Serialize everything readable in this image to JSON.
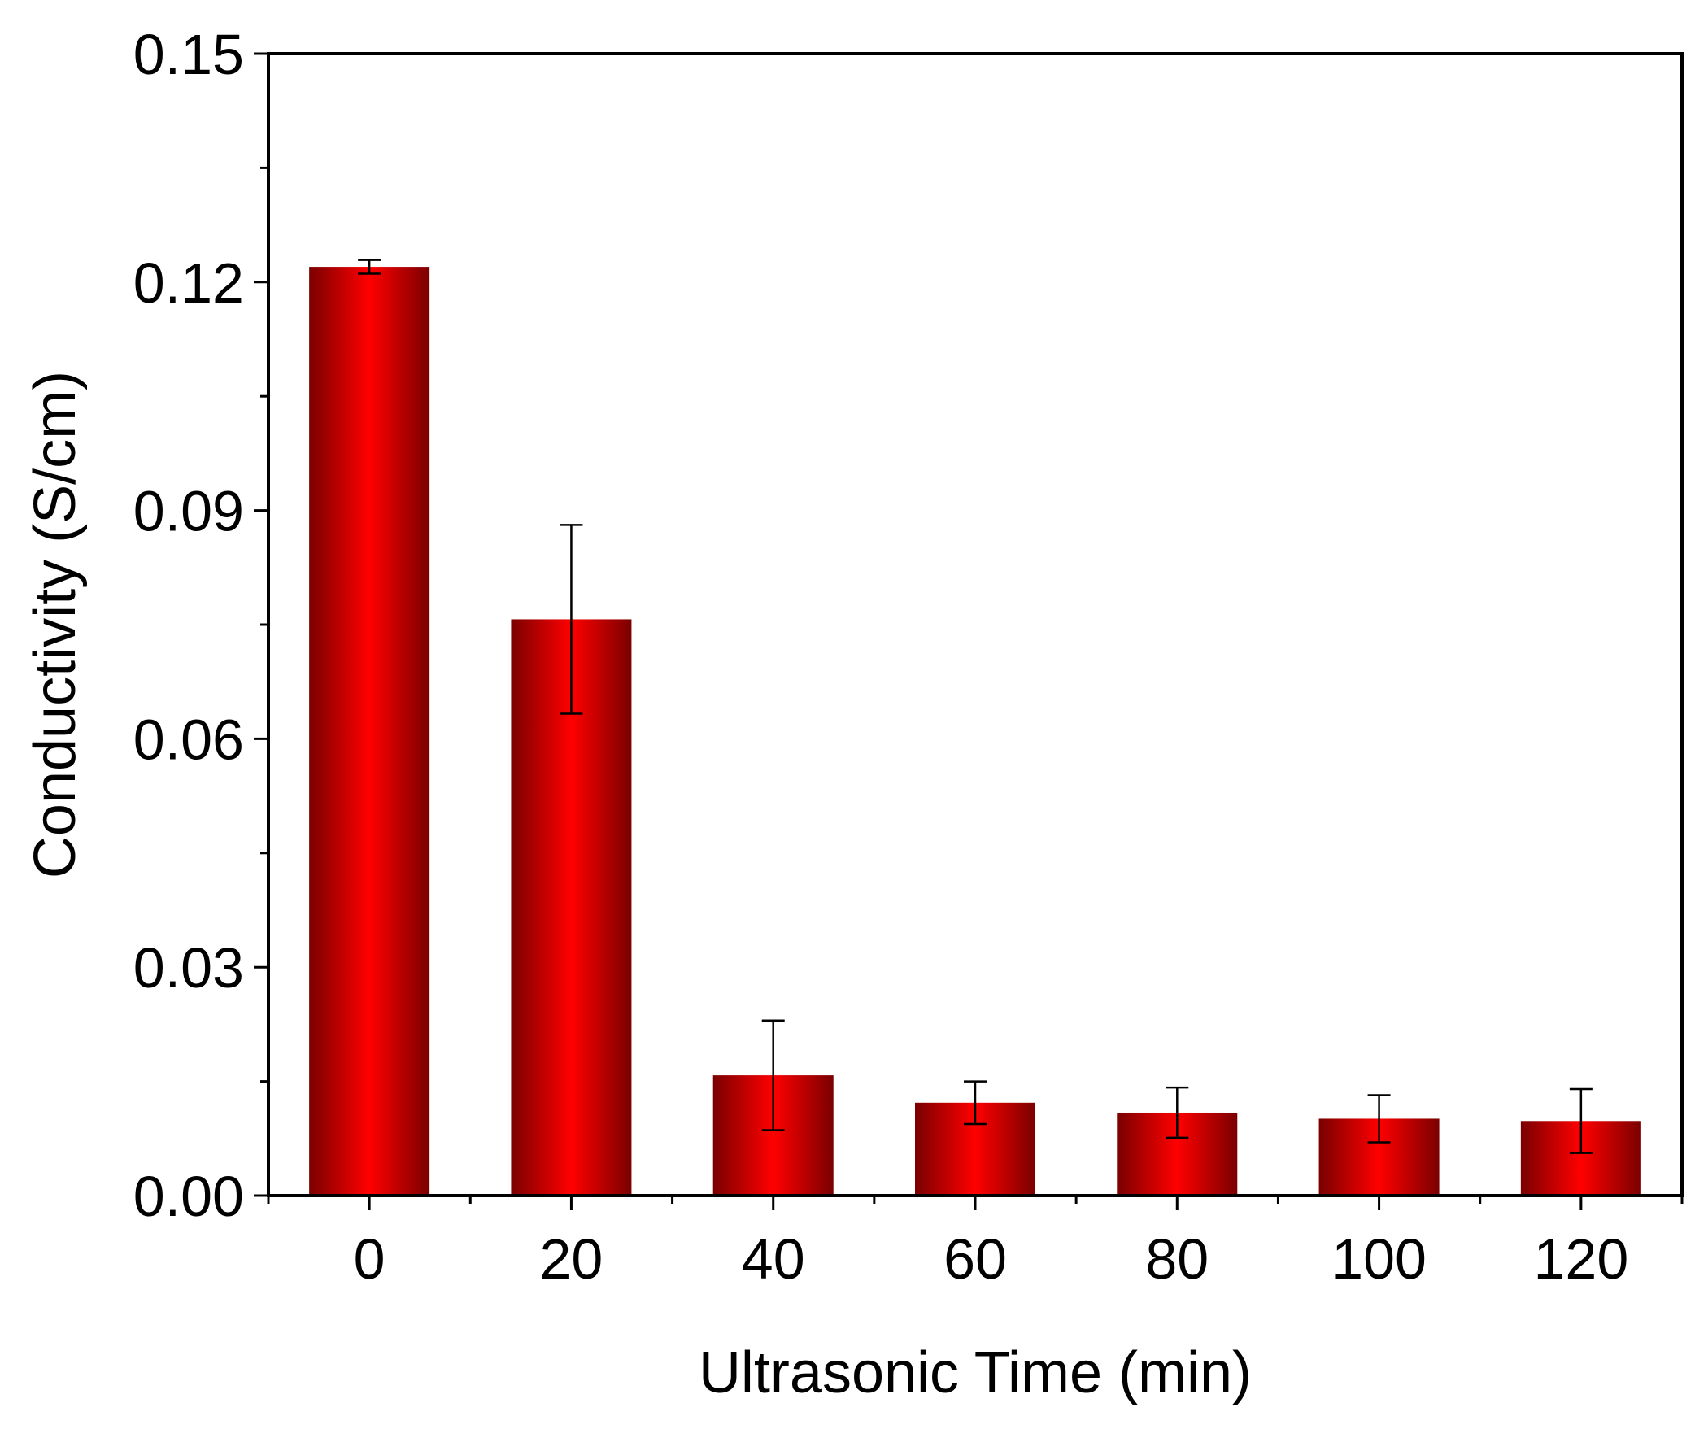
{
  "chart_data": {
    "type": "bar",
    "categories": [
      "0",
      "20",
      "40",
      "60",
      "80",
      "100",
      "120"
    ],
    "values": [
      0.122,
      0.0757,
      0.0158,
      0.0122,
      0.0109,
      0.0101,
      0.0098
    ],
    "errors": [
      0.0009,
      0.0124,
      0.0072,
      0.0028,
      0.0033,
      0.0031,
      0.0042
    ],
    "xlabel": "Ultrasonic Time (min)",
    "ylabel": "Conductivity (S/cm)",
    "ylim": [
      0,
      0.15
    ],
    "yticks": [
      "0.00",
      "0.03",
      "0.06",
      "0.09",
      "0.12",
      "0.15"
    ],
    "ytick_values": [
      0,
      0.03,
      0.06,
      0.09,
      0.12,
      0.15
    ],
    "grid": false,
    "legend": "none",
    "bar_color_edge": "#7a0000",
    "bar_color_center": "#ff0000"
  }
}
